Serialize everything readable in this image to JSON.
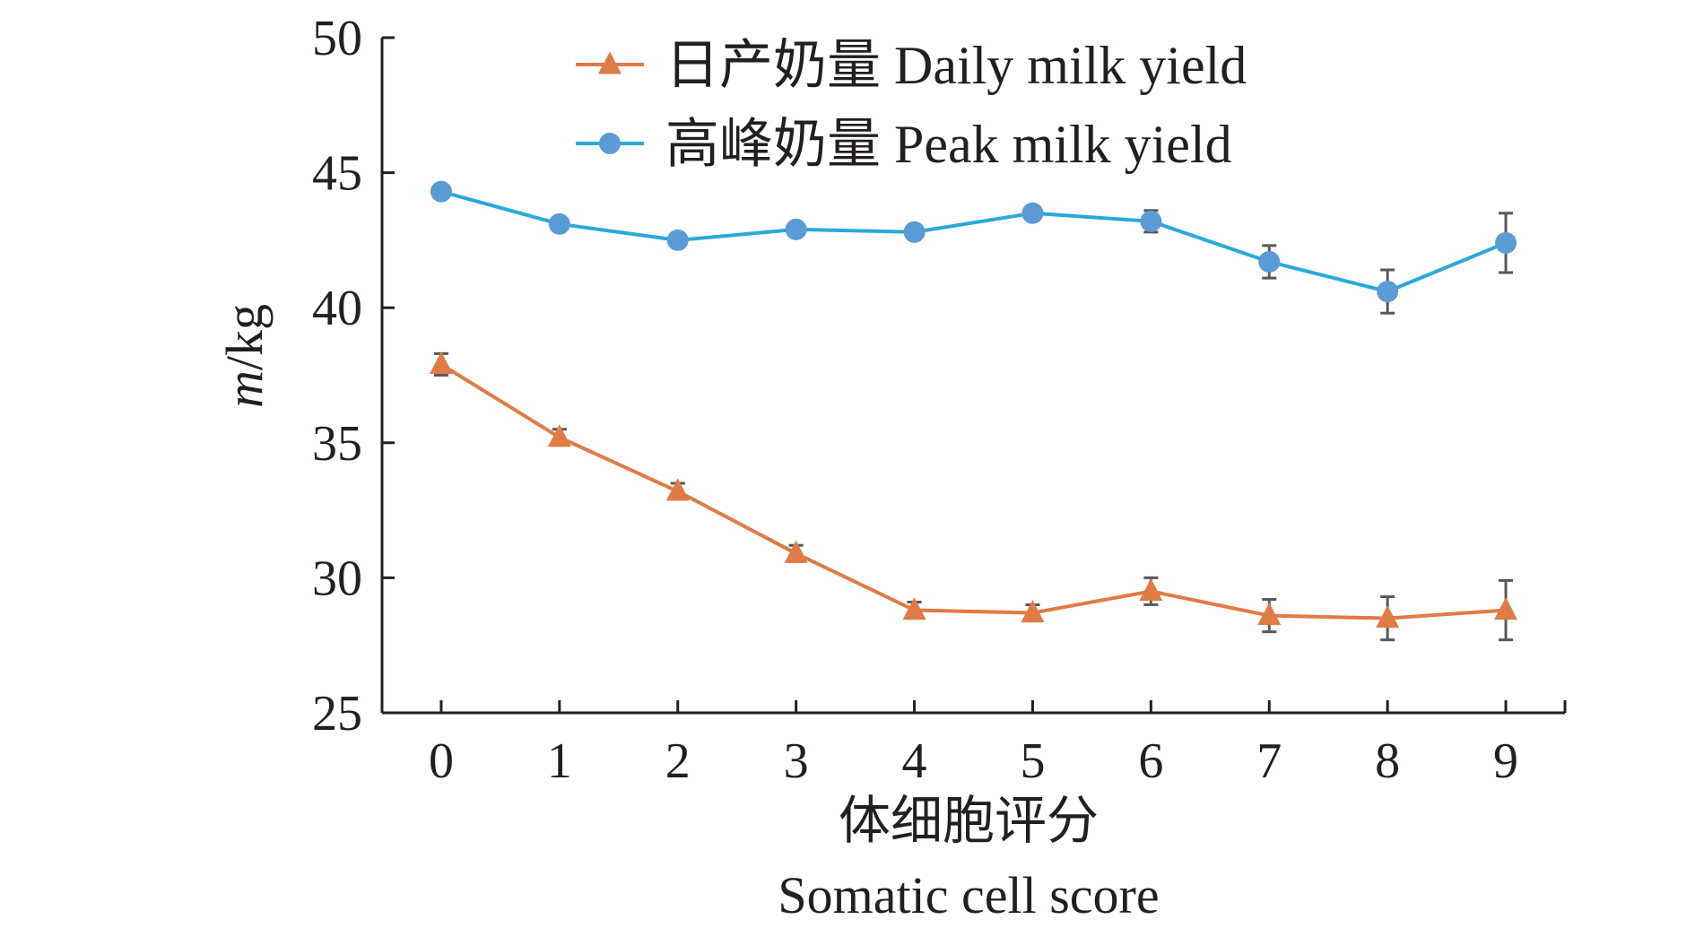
{
  "chart_data": {
    "type": "line",
    "title": "",
    "xlabel_cn": "体细胞评分",
    "xlabel_en": "Somatic cell score",
    "ylabel_italic": "m",
    "ylabel_rest": "/kg",
    "ylim": [
      25,
      50
    ],
    "yticks": [
      25,
      30,
      35,
      40,
      45,
      50
    ],
    "xlim": [
      -0.5,
      9.5
    ],
    "x": [
      0,
      1,
      2,
      3,
      4,
      5,
      6,
      7,
      8,
      9
    ],
    "grid": false,
    "legend_position": "top-center",
    "series": [
      {
        "name": "日产奶量 Daily milk yield",
        "marker": "triangle",
        "color": "#e07b45",
        "values": [
          37.9,
          35.2,
          33.2,
          30.9,
          28.8,
          28.7,
          29.5,
          28.6,
          28.5,
          28.8
        ],
        "errors": [
          0.4,
          0.3,
          0.3,
          0.3,
          0.3,
          0.3,
          0.5,
          0.6,
          0.8,
          1.1
        ]
      },
      {
        "name": "高峰奶量 Peak milk yield",
        "marker": "circle",
        "color": "#5b9bd5",
        "line_color": "#2ba8d8",
        "values": [
          44.3,
          43.1,
          42.5,
          42.9,
          42.8,
          43.5,
          43.2,
          41.7,
          40.6,
          42.4
        ],
        "errors": [
          0.2,
          0.2,
          0.2,
          0.2,
          0.2,
          0.2,
          0.4,
          0.6,
          0.8,
          1.1
        ]
      }
    ],
    "error_bar_color": "#595959",
    "axis_color": "#231f20"
  }
}
